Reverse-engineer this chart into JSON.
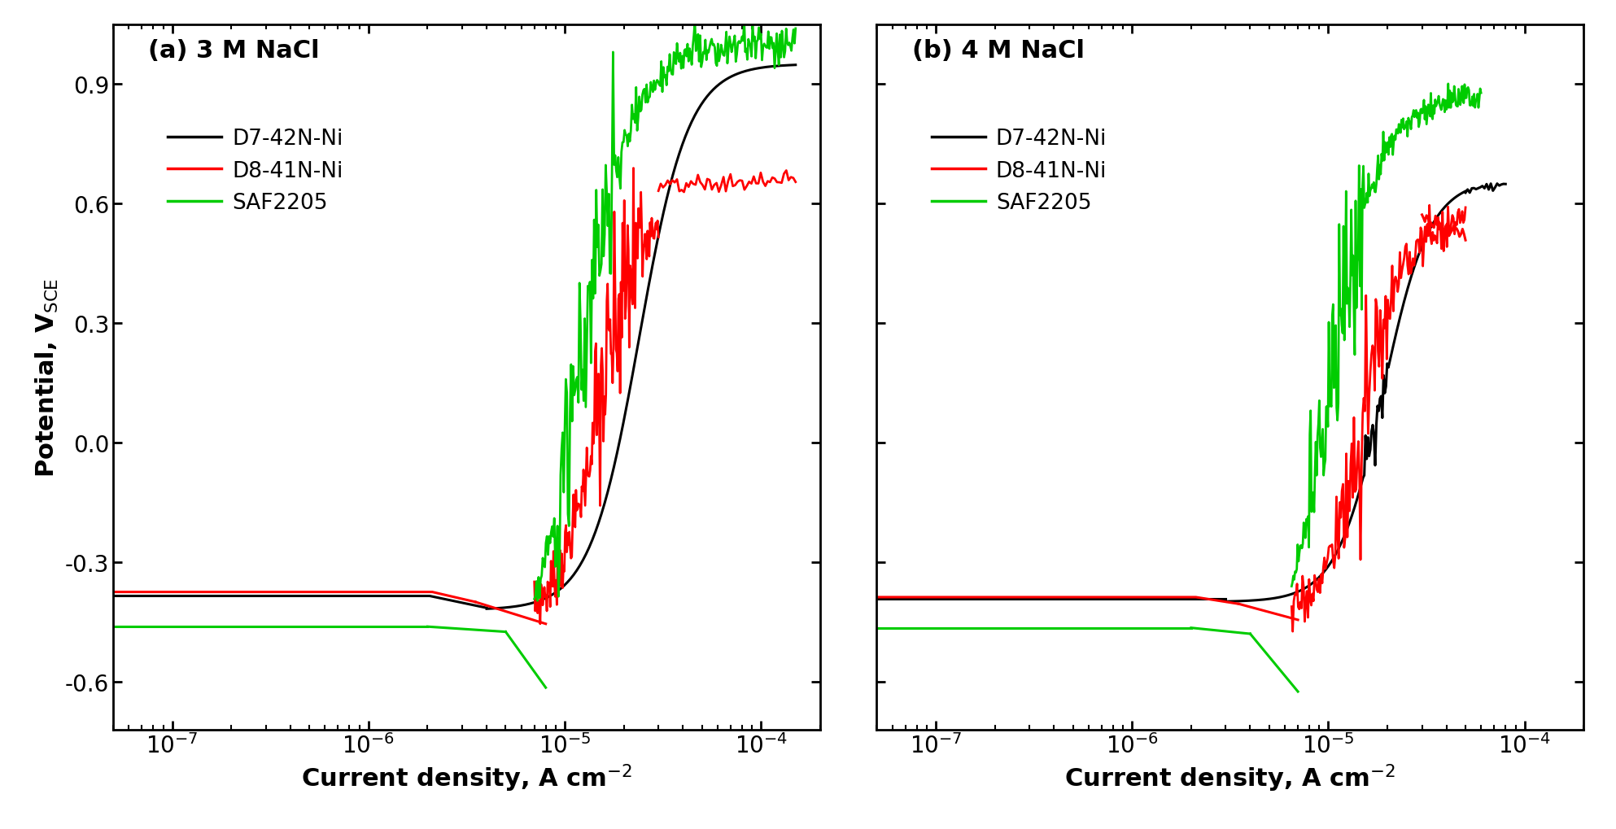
{
  "title_a": "(a) 3 M NaCl",
  "title_b": "(b) 4 M NaCl",
  "xlabel": "Current density, A cm⁻²",
  "legend_labels": [
    "D7-42N-Ni",
    "D8-41N-Ni",
    "SAF2205"
  ],
  "colors": [
    "#000000",
    "#ff0000",
    "#00cc00"
  ],
  "xlim": [
    5e-08,
    0.0002
  ],
  "ylim": [
    -0.72,
    1.05
  ],
  "yticks": [
    -0.6,
    -0.3,
    0.0,
    0.3,
    0.6,
    0.9
  ],
  "linewidth": 2.2,
  "background_color": "#ffffff"
}
